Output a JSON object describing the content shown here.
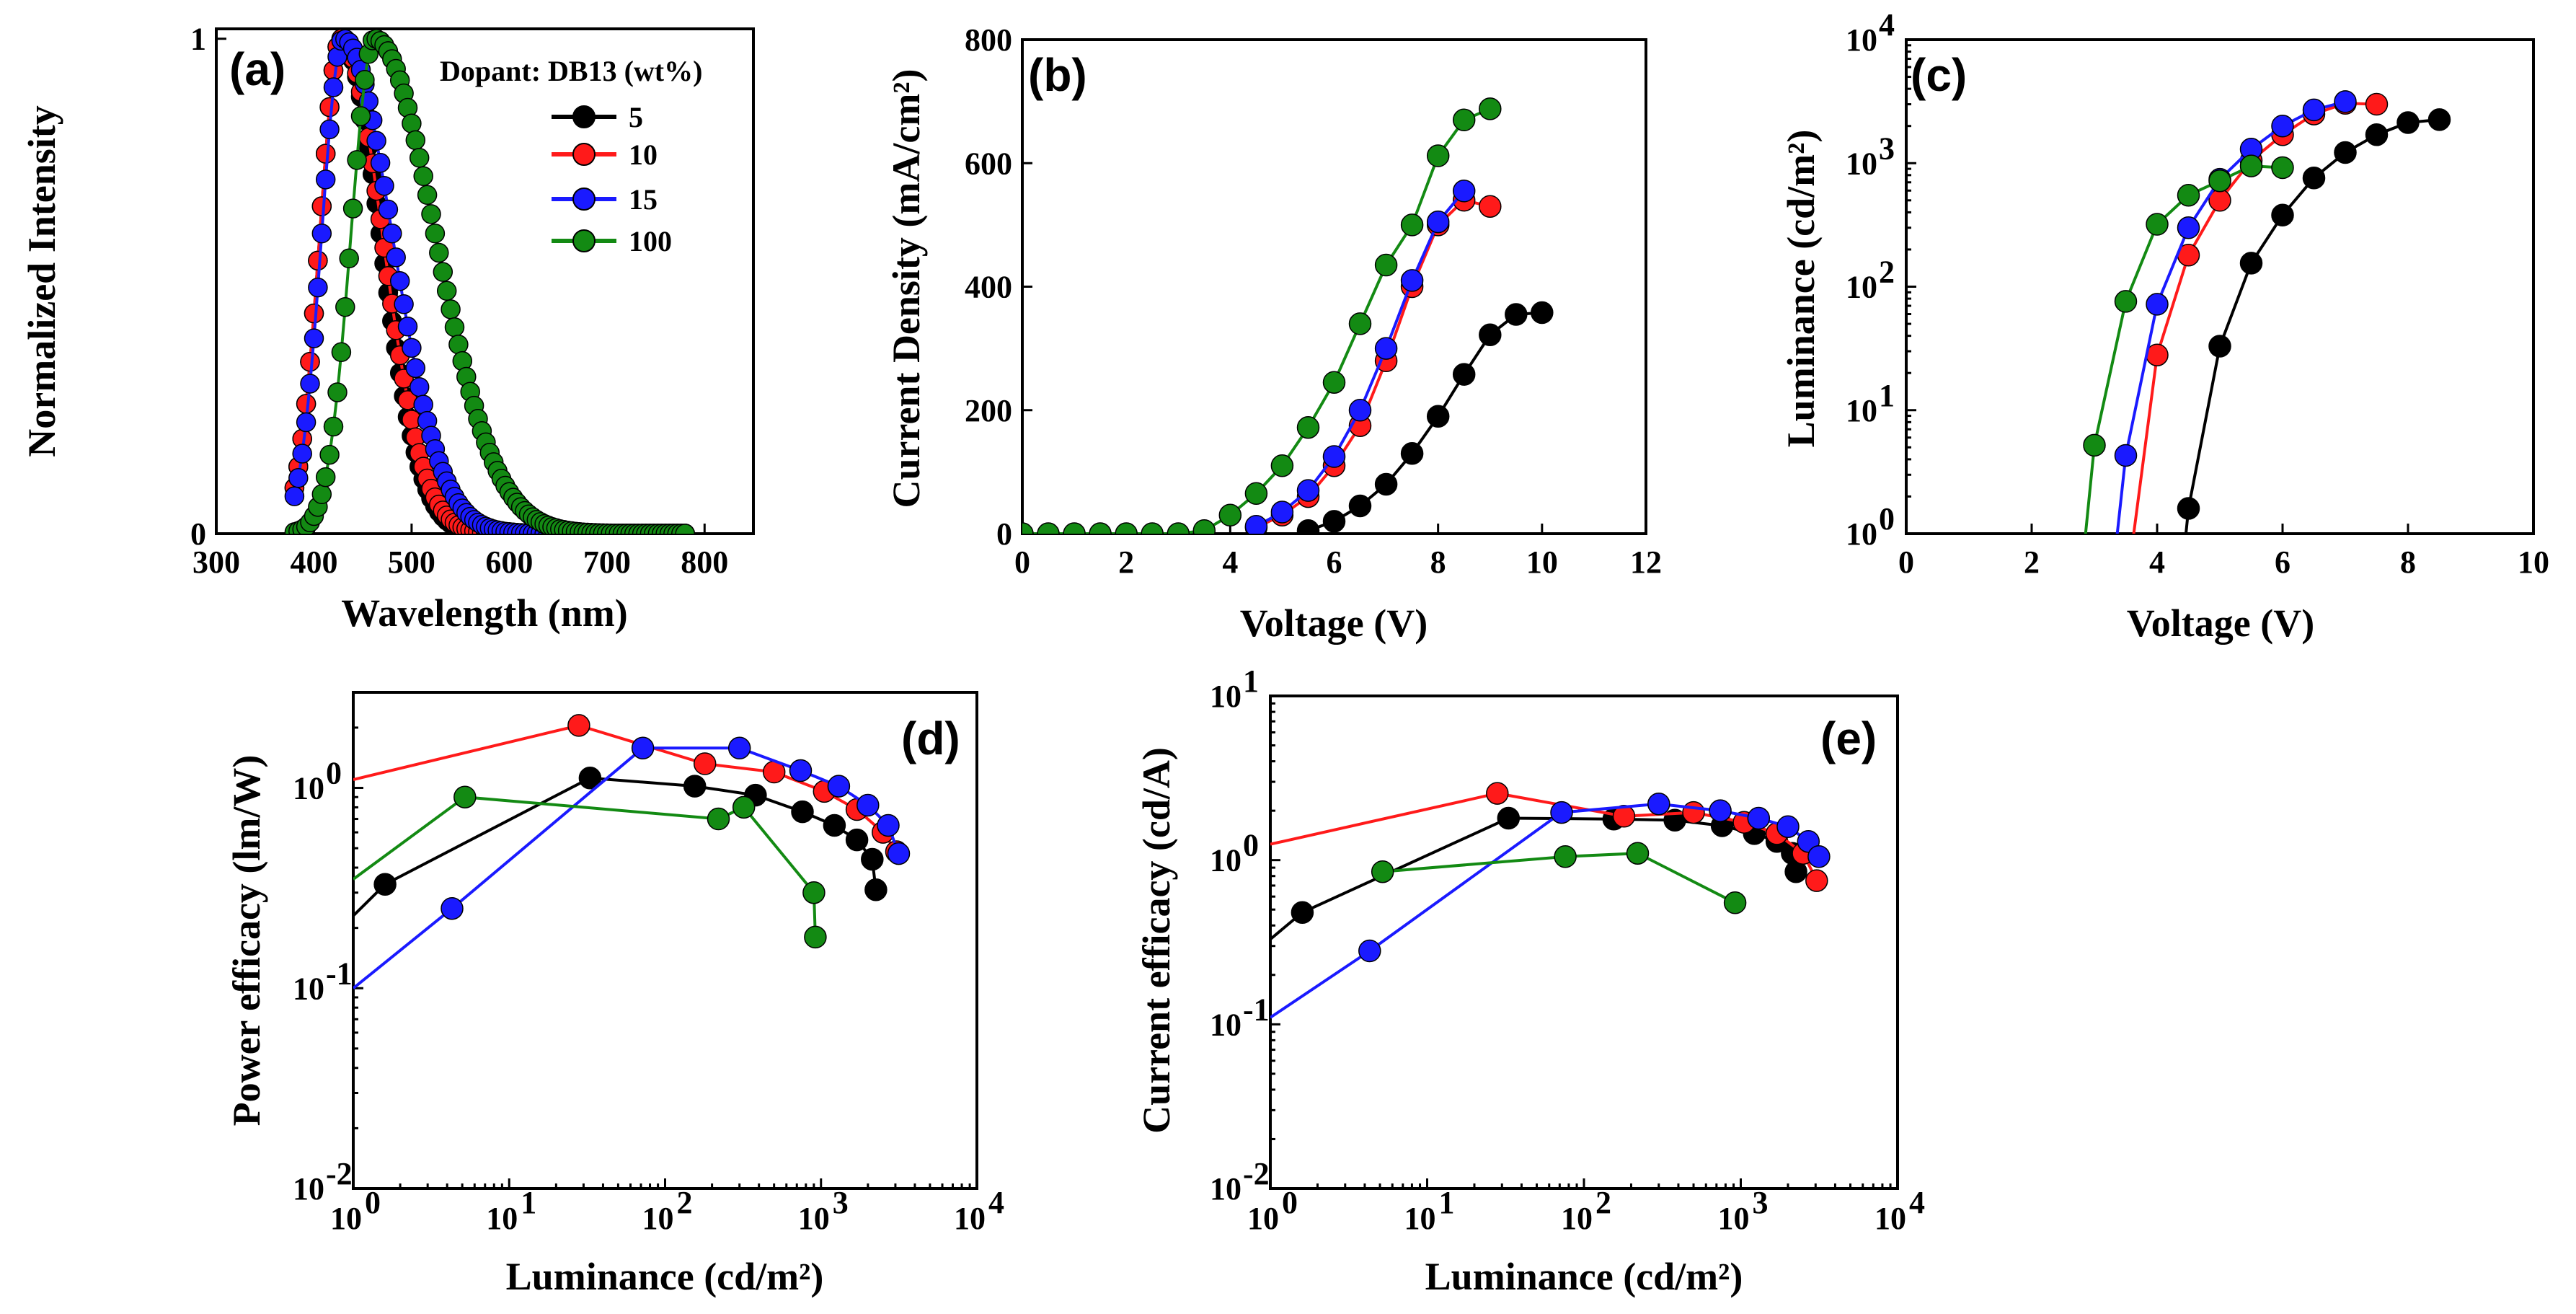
{
  "colors": {
    "5": "#000000",
    "10": "#ff1a1a",
    "15": "#1a1aff",
    "100": "#138a13"
  },
  "chart_data": [
    {
      "id": "a",
      "type": "line",
      "panel_label": "(a)",
      "xlabel": "Wavelength (nm)",
      "ylabel": "Normalized Intensity",
      "xlim": [
        300,
        850
      ],
      "ylim": [
        0,
        1.02
      ],
      "xticks": [
        "300",
        "400",
        "500",
        "600",
        "700",
        "800"
      ],
      "yticks": [
        "0",
        "1"
      ],
      "legend_title": "Dopant: DB13 (wt%)",
      "series": [
        {
          "name": "5",
          "peak": 428,
          "sigma_left": 22,
          "sigma_right": 40,
          "x_start": 380,
          "x_end": 780,
          "step": 4
        },
        {
          "name": "10",
          "peak": 428,
          "sigma_left": 22,
          "sigma_right": 42,
          "x_start": 380,
          "x_end": 780,
          "step": 4
        },
        {
          "name": "15",
          "peak": 430,
          "sigma_left": 22,
          "sigma_right": 50,
          "x_start": 380,
          "x_end": 780,
          "step": 4
        },
        {
          "name": "100",
          "peak": 462,
          "sigma_left": 24,
          "sigma_right": 62,
          "x_start": 380,
          "x_end": 780,
          "step": 4
        }
      ]
    },
    {
      "id": "b",
      "type": "line",
      "panel_label": "(b)",
      "xlabel": "Voltage (V)",
      "ylabel": "Current Density (mA/cm²)",
      "xlim": [
        0,
        12
      ],
      "ylim": [
        0,
        800
      ],
      "xticks": [
        "0",
        "2",
        "4",
        "6",
        "8",
        "10",
        "12"
      ],
      "yticks": [
        "0",
        "200",
        "400",
        "600",
        "800"
      ],
      "series": [
        {
          "name": "5",
          "x": [
            5.5,
            6,
            6.5,
            7,
            7.5,
            8,
            8.5,
            9,
            9.5,
            10
          ],
          "y": [
            5,
            20,
            45,
            80,
            130,
            190,
            258,
            322,
            355,
            358
          ]
        },
        {
          "name": "10",
          "x": [
            4.5,
            5,
            5.5,
            6,
            6.5,
            7,
            7.5,
            8,
            8.5,
            9
          ],
          "y": [
            10,
            30,
            60,
            110,
            175,
            280,
            400,
            500,
            540,
            530
          ]
        },
        {
          "name": "15",
          "x": [
            4.5,
            5,
            5.5,
            6,
            6.5,
            7,
            7.5,
            8,
            8.5
          ],
          "y": [
            12,
            35,
            70,
            125,
            200,
            300,
            410,
            505,
            555
          ]
        },
        {
          "name": "100",
          "x": [
            0,
            0.5,
            1,
            1.5,
            2,
            2.5,
            3,
            3.5,
            4,
            4.5,
            5,
            5.5,
            6,
            6.5,
            7,
            7.5,
            8,
            8.5,
            9
          ],
          "y": [
            0,
            0,
            0,
            0,
            0,
            0,
            0,
            5,
            30,
            65,
            110,
            172,
            245,
            340,
            435,
            500,
            612,
            670,
            688
          ]
        }
      ]
    },
    {
      "id": "c",
      "type": "line",
      "scale_y": "log",
      "panel_label": "(c)",
      "xlabel": "Voltage (V)",
      "ylabel": "Luminance (cd/m²)",
      "xlim": [
        0,
        10
      ],
      "ylim": [
        1,
        10000
      ],
      "xticks": [
        "0",
        "2",
        "4",
        "6",
        "8",
        "10"
      ],
      "series": [
        {
          "name": "5",
          "x": [
            4.5,
            5,
            5.5,
            6,
            6.5,
            7,
            7.5,
            8,
            8.5
          ],
          "y": [
            1.6,
            33,
            155,
            380,
            760,
            1220,
            1700,
            2130,
            2250
          ],
          "lead_x": 4.4
        },
        {
          "name": "10",
          "x": [
            4,
            4.5,
            5,
            5.5,
            6,
            6.5,
            7,
            7.5
          ],
          "y": [
            28,
            180,
            500,
            1050,
            1700,
            2500,
            3050,
            3000
          ],
          "lead_x": 3.55
        },
        {
          "name": "15",
          "x": [
            3.5,
            4,
            4.5,
            5,
            5.5,
            6,
            6.5,
            7
          ],
          "y": [
            4.3,
            72,
            300,
            740,
            1300,
            2000,
            2700,
            3150
          ],
          "lead_x": 3.3
        },
        {
          "name": "100",
          "x": [
            3,
            3.5,
            4,
            4.5,
            5,
            5.5,
            6
          ],
          "y": [
            5.2,
            76,
            320,
            550,
            720,
            950,
            920
          ],
          "lead_x": 2.8
        }
      ]
    },
    {
      "id": "d",
      "type": "line",
      "scale_x": "log",
      "scale_y": "log",
      "panel_label": "(d)",
      "xlabel": "Luminance (cd/m²)",
      "ylabel": "Power efficacy (lm/W)",
      "xlim": [
        1,
        10000
      ],
      "ylim": [
        0.01,
        3
      ],
      "series": [
        {
          "name": "5",
          "x": [
            1.6,
            33,
            155,
            380,
            760,
            1220,
            1700,
            2130,
            2250
          ],
          "y": [
            0.33,
            1.12,
            1.02,
            0.92,
            0.76,
            0.65,
            0.55,
            0.44,
            0.31
          ],
          "lead": [
            1,
            0.23
          ]
        },
        {
          "name": "10",
          "x": [
            28,
            180,
            500,
            1050,
            1700,
            2500,
            3050
          ],
          "y": [
            2.05,
            1.32,
            1.2,
            0.96,
            0.78,
            0.6,
            0.48
          ],
          "lead": [
            1,
            1.1
          ]
        },
        {
          "name": "15",
          "x": [
            4.3,
            72,
            300,
            740,
            1300,
            2000,
            2700,
            3150
          ],
          "y": [
            0.25,
            1.58,
            1.58,
            1.22,
            1.02,
            0.82,
            0.65,
            0.47
          ],
          "lead": [
            1,
            0.1
          ]
        },
        {
          "name": "100",
          "x": [
            5.2,
            220,
            320,
            900,
            920
          ],
          "y": [
            0.9,
            0.7,
            0.8,
            0.3,
            0.18
          ],
          "lead": [
            1,
            0.35
          ]
        }
      ]
    },
    {
      "id": "e",
      "type": "line",
      "scale_x": "log",
      "scale_y": "log",
      "panel_label": "(e)",
      "xlabel": "Luminance (cd/m²)",
      "ylabel": "Current efficacy (cd/A)",
      "xlim": [
        1,
        10000
      ],
      "ylim": [
        0.01,
        10
      ],
      "series": [
        {
          "name": "5",
          "x": [
            1.6,
            33,
            155,
            380,
            760,
            1220,
            1700,
            2130,
            2250
          ],
          "y": [
            0.48,
            1.8,
            1.78,
            1.75,
            1.62,
            1.45,
            1.3,
            1.1,
            0.85
          ],
          "lead": [
            1,
            0.33
          ]
        },
        {
          "name": "10",
          "x": [
            28,
            180,
            500,
            1050,
            1700,
            2500,
            3050
          ],
          "y": [
            2.55,
            1.85,
            1.95,
            1.7,
            1.45,
            1.1,
            0.75
          ],
          "lead": [
            1,
            1.25
          ]
        },
        {
          "name": "15",
          "x": [
            4.3,
            72,
            300,
            740,
            1300,
            2000,
            2700,
            3150
          ],
          "y": [
            0.28,
            1.95,
            2.2,
            2.0,
            1.8,
            1.6,
            1.3,
            1.05
          ],
          "lead": [
            1,
            0.11
          ]
        },
        {
          "name": "100",
          "x": [
            5.2,
            76,
            220,
            920
          ],
          "y": [
            0.85,
            1.05,
            1.1,
            0.55
          ]
        }
      ]
    }
  ]
}
